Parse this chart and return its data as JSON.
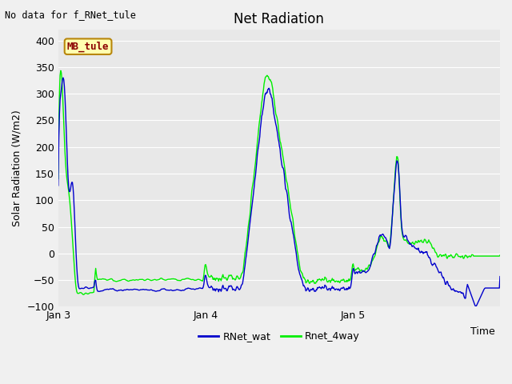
{
  "title": "Net Radiation",
  "ylabel": "Solar Radiation (W/m2)",
  "xlabel": "Time",
  "top_left_text": "No data for f_RNet_tule",
  "legend_label_box": "MB_tule",
  "ylim": [
    -100,
    420
  ],
  "yticks": [
    -100,
    -50,
    0,
    50,
    100,
    150,
    200,
    250,
    300,
    350,
    400
  ],
  "xtick_labels": [
    "Jan 3",
    "Jan 4",
    "Jan 5"
  ],
  "xtick_positions": [
    0,
    1,
    2
  ],
  "line1_label": "RNet_wat",
  "line1_color": "#0000cc",
  "line2_label": "Rnet_4way",
  "line2_color": "#00ee00",
  "bg_color": "#e8e8e8",
  "grid_color": "#ffffff",
  "fig_bg_color": "#f0f0f0",
  "title_fontsize": 12,
  "axis_label_fontsize": 9,
  "tick_label_fontsize": 9
}
